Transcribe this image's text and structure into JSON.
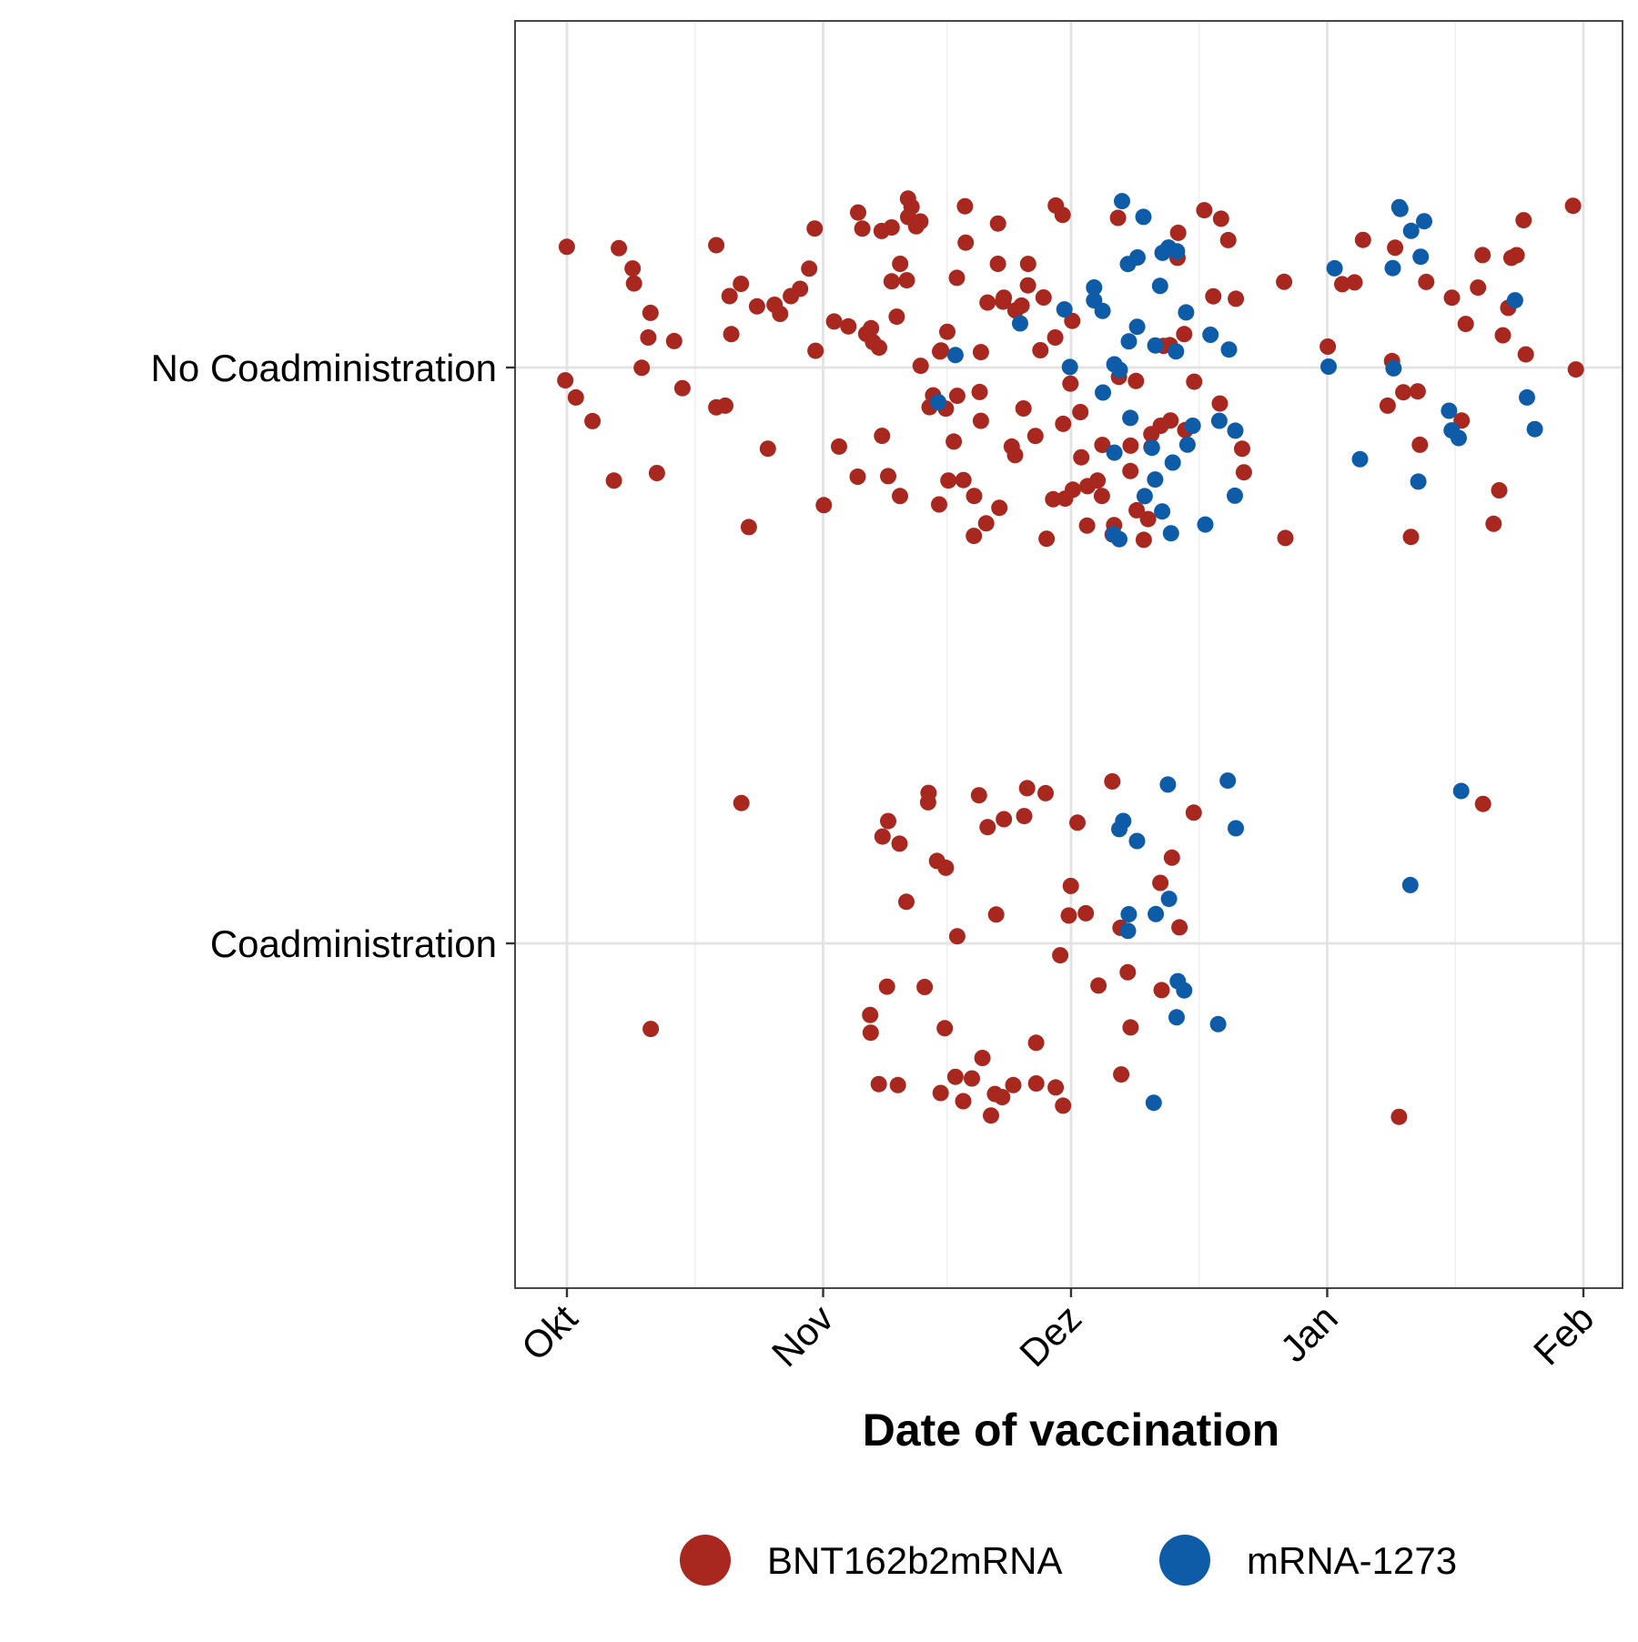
{
  "chart_data": {
    "type": "scatter",
    "jitter": true,
    "title": "",
    "xlabel": "Date of vaccination",
    "ylabel": "",
    "x_axis": {
      "kind": "date",
      "range": [
        "2021-10-01",
        "2022-02-01"
      ],
      "ticks": [
        {
          "date": "2021-10-01",
          "label": "Okt"
        },
        {
          "date": "2021-11-01",
          "label": "Nov"
        },
        {
          "date": "2021-12-01",
          "label": "Dez"
        },
        {
          "date": "2022-01-01",
          "label": "Jan"
        },
        {
          "date": "2022-02-01",
          "label": "Feb"
        }
      ],
      "tick_label_rotation_deg": -45
    },
    "y_axis": {
      "kind": "categorical",
      "categories": [
        "No Coadministration",
        "Coadministration"
      ]
    },
    "grid": true,
    "legend": {
      "position": "bottom"
    },
    "series": [
      {
        "name": "BNT162b2mRNA",
        "color": "#A8281F",
        "groups": [
          {
            "category": "No Coadministration",
            "dates": [
              "2021-10-01",
              "2021-10-01",
              "2021-10-02",
              "2021-10-04",
              "2021-10-07",
              "2021-10-07",
              "2021-10-09",
              "2021-10-09",
              "2021-10-10",
              "2021-10-11",
              "2021-10-11",
              "2021-10-12",
              "2021-10-14",
              "2021-10-15",
              "2021-10-19",
              "2021-10-19",
              "2021-10-20",
              "2021-10-21",
              "2021-10-21",
              "2021-10-22",
              "2021-10-23",
              "2021-10-24",
              "2021-10-25",
              "2021-10-26",
              "2021-10-27",
              "2021-10-28",
              "2021-10-29",
              "2021-10-30",
              "2021-10-31",
              "2021-10-31",
              "2021-11-01",
              "2021-11-02",
              "2021-11-03",
              "2021-11-04",
              "2021-11-05",
              "2021-11-05",
              "2021-11-06",
              "2021-11-06",
              "2021-11-07",
              "2021-11-07",
              "2021-11-08",
              "2021-11-08",
              "2021-11-08",
              "2021-11-09",
              "2021-11-09",
              "2021-11-09",
              "2021-11-10",
              "2021-11-10",
              "2021-11-10",
              "2021-11-11",
              "2021-11-11",
              "2021-11-11",
              "2021-11-12",
              "2021-11-12",
              "2021-11-13",
              "2021-11-13",
              "2021-11-14",
              "2021-11-14",
              "2021-11-15",
              "2021-11-15",
              "2021-11-15",
              "2021-11-16",
              "2021-11-16",
              "2021-11-16",
              "2021-11-17",
              "2021-11-17",
              "2021-11-17",
              "2021-11-18",
              "2021-11-18",
              "2021-11-18",
              "2021-11-19",
              "2021-11-19",
              "2021-11-20",
              "2021-11-20",
              "2021-11-20",
              "2021-11-21",
              "2021-11-21",
              "2021-11-22",
              "2021-11-22",
              "2021-11-22",
              "2021-11-23",
              "2021-11-23",
              "2021-11-24",
              "2021-11-24",
              "2021-11-24",
              "2021-11-25",
              "2021-11-25",
              "2021-11-26",
              "2021-11-26",
              "2021-11-27",
              "2021-11-27",
              "2021-11-28",
              "2021-11-28",
              "2021-11-29",
              "2021-11-29",
              "2021-11-29",
              "2021-11-30",
              "2021-11-30",
              "2021-11-30",
              "2021-12-01",
              "2021-12-01",
              "2021-12-01",
              "2021-12-02",
              "2021-12-02",
              "2021-12-03",
              "2021-12-03",
              "2021-12-04",
              "2021-12-05",
              "2021-12-05",
              "2021-12-06",
              "2021-12-06",
              "2021-12-07",
              "2021-12-07",
              "2021-12-08",
              "2021-12-08",
              "2021-12-09",
              "2021-12-09",
              "2021-12-10",
              "2021-12-10",
              "2021-12-11",
              "2021-12-11",
              "2021-12-12",
              "2021-12-12",
              "2021-12-13",
              "2021-12-13",
              "2021-12-14",
              "2021-12-14",
              "2021-12-15",
              "2021-12-15",
              "2021-12-16",
              "2021-12-17",
              "2021-12-18",
              "2021-12-19",
              "2021-12-19",
              "2021-12-20",
              "2021-12-21",
              "2021-12-22",
              "2021-12-22",
              "2021-12-27",
              "2021-12-27",
              "2022-01-01",
              "2022-01-03",
              "2022-01-04",
              "2022-01-05",
              "2022-01-08",
              "2022-01-09",
              "2022-01-09",
              "2022-01-10",
              "2022-01-11",
              "2022-01-12",
              "2022-01-12",
              "2022-01-13",
              "2022-01-16",
              "2022-01-17",
              "2022-01-18",
              "2022-01-19",
              "2022-01-20",
              "2022-01-21",
              "2022-01-22",
              "2022-01-22",
              "2022-01-23",
              "2022-01-23",
              "2022-01-24",
              "2022-01-25",
              "2022-01-25",
              "2022-01-31",
              "2022-01-31"
            ]
          },
          {
            "category": "Coadministration",
            "dates": [
              "2021-10-11",
              "2021-10-22",
              "2021-11-07",
              "2021-11-07",
              "2021-11-08",
              "2021-11-08",
              "2021-11-09",
              "2021-11-09",
              "2021-11-10",
              "2021-11-10",
              "2021-11-11",
              "2021-11-13",
              "2021-11-14",
              "2021-11-14",
              "2021-11-15",
              "2021-11-15",
              "2021-11-16",
              "2021-11-16",
              "2021-11-17",
              "2021-11-17",
              "2021-11-18",
              "2021-11-19",
              "2021-11-20",
              "2021-11-20",
              "2021-11-21",
              "2021-11-21",
              "2021-11-22",
              "2021-11-22",
              "2021-11-23",
              "2021-11-23",
              "2021-11-24",
              "2021-11-25",
              "2021-11-26",
              "2021-11-27",
              "2021-11-27",
              "2021-11-28",
              "2021-11-29",
              "2021-11-30",
              "2021-11-30",
              "2021-12-01",
              "2021-12-01",
              "2021-12-02",
              "2021-12-03",
              "2021-12-04",
              "2021-12-06",
              "2021-12-07",
              "2021-12-07",
              "2021-12-08",
              "2021-12-08",
              "2021-12-12",
              "2021-12-12",
              "2021-12-13",
              "2021-12-14",
              "2021-12-16",
              "2022-01-10",
              "2022-01-20"
            ]
          }
        ]
      },
      {
        "name": "mRNA-1273",
        "color": "#0E5CA8",
        "groups": [
          {
            "category": "No Coadministration",
            "dates": [
              "2021-11-15",
              "2021-11-17",
              "2021-11-25",
              "2021-11-30",
              "2021-12-01",
              "2021-12-04",
              "2021-12-04",
              "2021-12-05",
              "2021-12-05",
              "2021-12-06",
              "2021-12-06",
              "2021-12-06",
              "2021-12-07",
              "2021-12-07",
              "2021-12-07",
              "2021-12-08",
              "2021-12-08",
              "2021-12-08",
              "2021-12-09",
              "2021-12-09",
              "2021-12-10",
              "2021-12-10",
              "2021-12-11",
              "2021-12-11",
              "2021-12-11",
              "2021-12-12",
              "2021-12-12",
              "2021-12-12",
              "2021-12-13",
              "2021-12-13",
              "2021-12-13",
              "2021-12-14",
              "2021-12-14",
              "2021-12-15",
              "2021-12-15",
              "2021-12-16",
              "2021-12-17",
              "2021-12-18",
              "2021-12-19",
              "2021-12-20",
              "2021-12-21",
              "2021-12-21",
              "2022-01-01",
              "2022-01-02",
              "2022-01-05",
              "2022-01-09",
              "2022-01-09",
              "2022-01-10",
              "2022-01-10",
              "2022-01-11",
              "2022-01-12",
              "2022-01-12",
              "2022-01-13",
              "2022-01-16",
              "2022-01-16",
              "2022-01-17",
              "2022-01-24",
              "2022-01-25",
              "2022-01-26"
            ]
          },
          {
            "category": "Coadministration",
            "dates": [
              "2021-12-07",
              "2021-12-07",
              "2021-12-08",
              "2021-12-08",
              "2021-12-09",
              "2021-12-11",
              "2021-12-11",
              "2021-12-13",
              "2021-12-13",
              "2021-12-14",
              "2021-12-14",
              "2021-12-15",
              "2021-12-19",
              "2021-12-20",
              "2021-12-21",
              "2022-01-11",
              "2022-01-17"
            ]
          }
        ]
      }
    ]
  }
}
